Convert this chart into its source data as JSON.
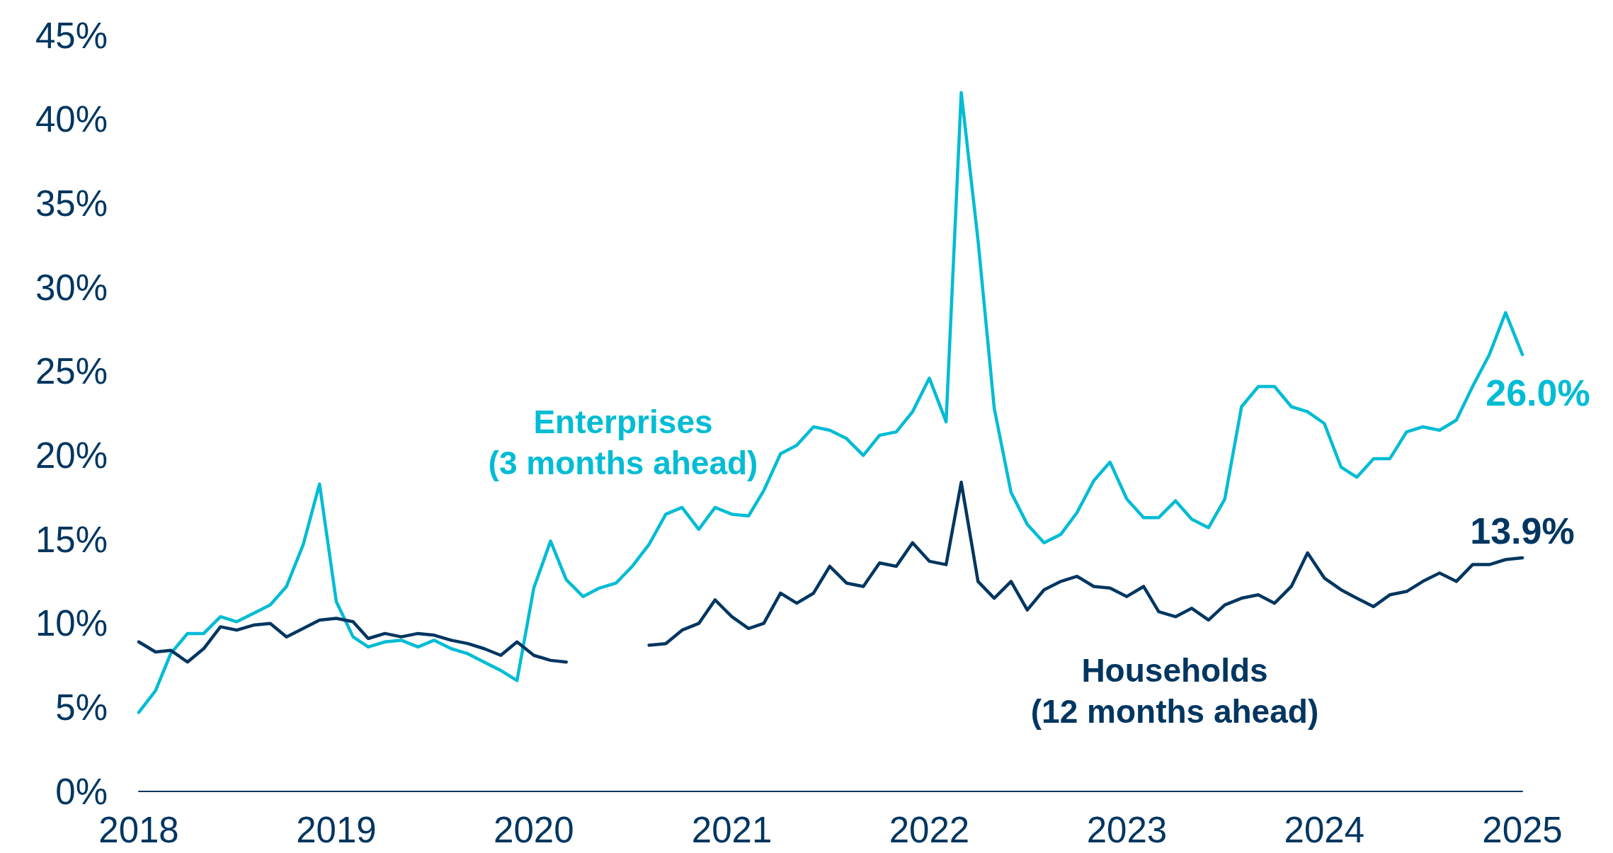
{
  "chart_data": {
    "type": "line",
    "x": [
      "2018-01",
      "2018-02",
      "2018-03",
      "2018-04",
      "2018-05",
      "2018-06",
      "2018-07",
      "2018-08",
      "2018-09",
      "2018-10",
      "2018-11",
      "2018-12",
      "2019-01",
      "2019-02",
      "2019-03",
      "2019-04",
      "2019-05",
      "2019-06",
      "2019-07",
      "2019-08",
      "2019-09",
      "2019-10",
      "2019-11",
      "2019-12",
      "2020-01",
      "2020-02",
      "2020-03",
      "2020-04",
      "2020-05",
      "2020-06",
      "2020-07",
      "2020-08",
      "2020-09",
      "2020-10",
      "2020-11",
      "2020-12",
      "2021-01",
      "2021-02",
      "2021-03",
      "2021-04",
      "2021-05",
      "2021-06",
      "2021-07",
      "2021-08",
      "2021-09",
      "2021-10",
      "2021-11",
      "2021-12",
      "2022-01",
      "2022-02",
      "2022-03",
      "2022-04",
      "2022-05",
      "2022-06",
      "2022-07",
      "2022-08",
      "2022-09",
      "2022-10",
      "2022-11",
      "2022-12",
      "2023-01",
      "2023-02",
      "2023-03",
      "2023-04",
      "2023-05",
      "2023-06",
      "2023-07",
      "2023-08",
      "2023-09",
      "2023-10",
      "2023-11",
      "2023-12",
      "2024-01",
      "2024-02",
      "2024-03",
      "2024-04",
      "2024-05",
      "2024-06",
      "2024-07",
      "2024-08",
      "2024-09",
      "2024-10",
      "2024-11",
      "2024-12",
      "2025-01"
    ],
    "series": [
      {
        "name": "Enterprises\n(3 months ahead)",
        "color": "#00bcd4",
        "values": [
          4.7,
          6.0,
          8.2,
          9.4,
          9.4,
          10.4,
          10.1,
          10.6,
          11.1,
          12.2,
          14.7,
          18.3,
          11.3,
          9.2,
          8.6,
          8.9,
          9.0,
          8.6,
          9.0,
          8.5,
          8.2,
          7.7,
          7.2,
          6.6,
          12.1,
          14.9,
          12.6,
          11.6,
          12.1,
          12.4,
          13.4,
          14.7,
          16.5,
          16.9,
          15.6,
          16.9,
          16.5,
          16.4,
          17.9,
          20.1,
          20.6,
          21.7,
          21.5,
          21.0,
          20.0,
          21.2,
          21.4,
          22.6,
          24.6,
          22.0,
          41.6,
          32.8,
          22.8,
          17.8,
          15.9,
          14.8,
          15.3,
          16.6,
          18.5,
          19.6,
          17.4,
          16.3,
          16.3,
          17.3,
          16.2,
          15.7,
          17.4,
          22.9,
          24.1,
          24.1,
          22.9,
          22.6,
          21.9,
          19.3,
          18.7,
          19.8,
          19.8,
          21.4,
          21.7,
          21.5,
          22.1,
          24.1,
          26.0,
          28.5,
          26.0
        ],
        "value_labels": [
          null,
          null,
          null,
          null,
          null,
          null,
          null,
          null,
          null,
          null,
          null,
          null,
          null,
          null,
          null,
          null,
          null,
          null,
          null,
          null,
          null,
          null,
          null,
          null,
          null,
          null,
          null,
          null,
          null,
          null,
          null,
          null,
          null,
          null,
          null,
          null,
          null,
          null,
          null,
          null,
          null,
          null,
          null,
          null,
          null,
          null,
          null,
          null,
          null,
          null,
          null,
          null,
          null,
          null,
          null,
          null,
          null,
          null,
          null,
          null,
          null,
          null,
          null,
          null,
          null,
          null,
          null,
          null,
          null,
          null,
          null,
          null,
          null,
          null,
          null,
          null,
          null,
          null,
          null,
          null,
          null,
          null,
          null,
          null,
          "26.0%"
        ]
      },
      {
        "name": "Households\n(12 months ahead)",
        "color": "#003660",
        "values": [
          8.9,
          8.3,
          8.4,
          7.7,
          8.5,
          9.8,
          9.6,
          9.9,
          10.0,
          9.2,
          9.7,
          10.2,
          10.3,
          10.1,
          9.1,
          9.4,
          9.2,
          9.4,
          9.3,
          9.0,
          8.8,
          8.5,
          8.1,
          8.9,
          8.1,
          7.8,
          7.7,
          null,
          null,
          null,
          null,
          8.7,
          8.8,
          9.6,
          10.0,
          11.4,
          10.4,
          9.7,
          10.0,
          11.8,
          11.2,
          11.8,
          13.4,
          12.4,
          12.2,
          13.6,
          13.4,
          14.8,
          13.7,
          13.5,
          18.4,
          12.5,
          11.5,
          12.5,
          10.8,
          12.0,
          12.5,
          12.8,
          12.2,
          12.1,
          11.6,
          12.2,
          10.7,
          10.4,
          10.9,
          10.2,
          11.1,
          11.5,
          11.7,
          11.2,
          12.2,
          14.2,
          12.7,
          12.0,
          11.5,
          11.0,
          11.7,
          11.9,
          12.5,
          13.0,
          12.5,
          13.5,
          13.5,
          13.8,
          13.9
        ],
        "value_labels": [
          null,
          null,
          null,
          null,
          null,
          null,
          null,
          null,
          null,
          null,
          null,
          null,
          null,
          null,
          null,
          null,
          null,
          null,
          null,
          null,
          null,
          null,
          null,
          null,
          null,
          null,
          null,
          null,
          null,
          null,
          null,
          null,
          null,
          null,
          null,
          null,
          null,
          null,
          null,
          null,
          null,
          null,
          null,
          null,
          null,
          null,
          null,
          null,
          null,
          null,
          null,
          null,
          null,
          null,
          null,
          null,
          null,
          null,
          null,
          null,
          null,
          null,
          null,
          null,
          null,
          null,
          null,
          null,
          null,
          null,
          null,
          null,
          null,
          null,
          null,
          null,
          null,
          null,
          null,
          null,
          null,
          null,
          null,
          null,
          "13.9%"
        ]
      }
    ],
    "xlim": [
      "2018-01",
      "2025-01"
    ],
    "xticks": [
      "2018",
      "2019",
      "2020",
      "2021",
      "2022",
      "2023",
      "2024",
      "2025"
    ],
    "ylim": [
      0,
      45
    ],
    "yticks": [
      {
        "value": 0,
        "label": "0%"
      },
      {
        "value": 5,
        "label": "5%"
      },
      {
        "value": 10,
        "label": "10%"
      },
      {
        "value": 15,
        "label": "15%"
      },
      {
        "value": 20,
        "label": "20%"
      },
      {
        "value": 25,
        "label": "25%"
      },
      {
        "value": 30,
        "label": "30%"
      },
      {
        "value": 35,
        "label": "35%"
      },
      {
        "value": 40,
        "label": "40%"
      },
      {
        "value": 45,
        "label": "45%"
      }
    ],
    "grid": false,
    "legend": false,
    "marker": "none",
    "line_style": "solid"
  }
}
